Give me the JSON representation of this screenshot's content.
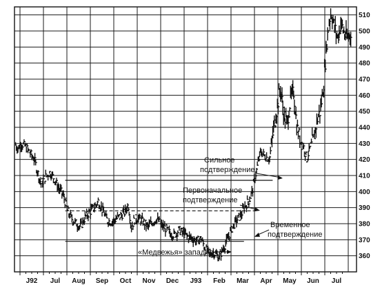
{
  "chart_data": {
    "type": "ohlc",
    "title": "",
    "xlabel": "",
    "ylabel": "",
    "ylim": [
      350,
      515
    ],
    "y_ticks": [
      360,
      370,
      380,
      390,
      400,
      410,
      420,
      430,
      440,
      450,
      460,
      470,
      480,
      490,
      500,
      510
    ],
    "x_tick_labels": [
      "J92",
      "Jul",
      "Aug",
      "Sep",
      "Oct",
      "Nov",
      "Dec",
      "J93",
      "Feb",
      "Mar",
      "Apr",
      "May",
      "Jun",
      "Jul"
    ],
    "grid": true,
    "price_path": [
      [
        0,
        430
      ],
      [
        3,
        427
      ],
      [
        6,
        430
      ],
      [
        10,
        428
      ],
      [
        14,
        424
      ],
      [
        18,
        420
      ],
      [
        21,
        412
      ],
      [
        24,
        405
      ],
      [
        28,
        409
      ],
      [
        32,
        412
      ],
      [
        36,
        408
      ],
      [
        40,
        402
      ],
      [
        44,
        398
      ],
      [
        48,
        388
      ],
      [
        52,
        383
      ],
      [
        56,
        380
      ],
      [
        60,
        378
      ],
      [
        64,
        384
      ],
      [
        68,
        387
      ],
      [
        72,
        390
      ],
      [
        76,
        394
      ],
      [
        80,
        388
      ],
      [
        84,
        382
      ],
      [
        88,
        381
      ],
      [
        92,
        383
      ],
      [
        96,
        385
      ],
      [
        100,
        387
      ],
      [
        103,
        392
      ],
      [
        106,
        378
      ],
      [
        109,
        383
      ],
      [
        113,
        383
      ],
      [
        117,
        381
      ],
      [
        121,
        378
      ],
      [
        125,
        381
      ],
      [
        129,
        383
      ],
      [
        133,
        379
      ],
      [
        137,
        377
      ],
      [
        141,
        374
      ],
      [
        145,
        373
      ],
      [
        149,
        376
      ],
      [
        153,
        374
      ],
      [
        157,
        372
      ],
      [
        161,
        371
      ],
      [
        165,
        369
      ],
      [
        169,
        371
      ],
      [
        173,
        364
      ],
      [
        177,
        361
      ],
      [
        181,
        362
      ],
      [
        185,
        359
      ],
      [
        189,
        364
      ],
      [
        193,
        370
      ],
      [
        197,
        377
      ],
      [
        201,
        382
      ],
      [
        205,
        385
      ],
      [
        209,
        391
      ],
      [
        213,
        395
      ],
      [
        216,
        402
      ],
      [
        219,
        412
      ],
      [
        223,
        425
      ],
      [
        227,
        422
      ],
      [
        231,
        420
      ],
      [
        235,
        440
      ],
      [
        238,
        452
      ],
      [
        241,
        465
      ],
      [
        244,
        448
      ],
      [
        247,
        442
      ],
      [
        250,
        457
      ],
      [
        253,
        462
      ],
      [
        256,
        440
      ],
      [
        259,
        432
      ],
      [
        262,
        428
      ],
      [
        265,
        420
      ],
      [
        268,
        428
      ],
      [
        271,
        432
      ],
      [
        274,
        444
      ],
      [
        277,
        450
      ],
      [
        280,
        465
      ],
      [
        283,
        493
      ],
      [
        285,
        505
      ],
      [
        287,
        512
      ],
      [
        290,
        502
      ],
      [
        293,
        496
      ],
      [
        296,
        505
      ],
      [
        299,
        498
      ],
      [
        302,
        495
      ],
      [
        305,
        500
      ]
    ],
    "annotations": [
      {
        "text": "Сильное",
        "x": 243,
        "y": 410
      },
      {
        "text": "подтверждение",
        "x": 243,
        "y": 410
      },
      {
        "text": "Первоначальное",
        "x": 228,
        "y": 390
      },
      {
        "text": "подтверждение",
        "x": 228,
        "y": 390
      },
      {
        "text": "Временное",
        "x": 196,
        "y": 380
      },
      {
        "text": "подтверждение",
        "x": 196,
        "y": 380
      },
      {
        "text": "«Медвежья» западня",
        "x": 186,
        "y": 362
      }
    ],
    "reference_lines": [
      {
        "style": "solid",
        "y": 407,
        "from": 46,
        "to": 234
      },
      {
        "style": "dashed",
        "y": 388,
        "from": 46,
        "to": 221
      },
      {
        "style": "solid",
        "y": 369,
        "from": 46,
        "to": 208
      }
    ]
  },
  "labels": {
    "ann1_l1": "Сильное",
    "ann1_l2": "подтверждение",
    "ann2_l1": "Первоначальное",
    "ann2_l2": "подтверждение",
    "ann3_l1": "Временное",
    "ann3_l2": "подтверждение",
    "ann4": "«Медвежья» западня"
  }
}
